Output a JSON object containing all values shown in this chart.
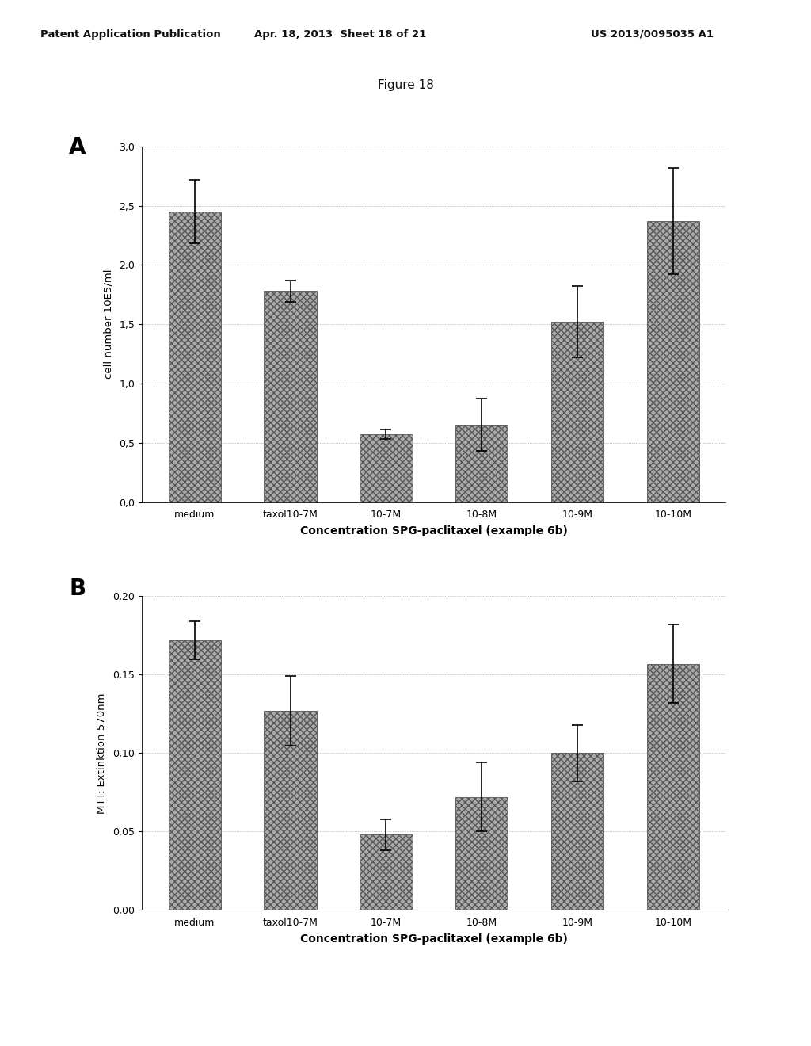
{
  "figure_title": "Figure 18",
  "header_left": "Patent Application Publication",
  "header_mid": "Apr. 18, 2013  Sheet 18 of 21",
  "header_right": "US 2013/0095035 A1",
  "chart_A": {
    "label": "A",
    "ylabel": "cell number 10E5/ml",
    "xlabel": "Concentration SPG-paclitaxel (example 6b)",
    "categories": [
      "medium",
      "taxol10-7M",
      "10-7M",
      "10-8M",
      "10-9M",
      "10-10M"
    ],
    "values": [
      2.45,
      1.78,
      0.57,
      0.65,
      1.52,
      2.37
    ],
    "errors": [
      0.27,
      0.09,
      0.04,
      0.22,
      0.3,
      0.45
    ],
    "ylim": [
      0.0,
      3.0
    ],
    "yticks": [
      0.0,
      0.5,
      1.0,
      1.5,
      2.0,
      2.5,
      3.0
    ],
    "ytick_labels": [
      "0,0",
      "0,5",
      "1,0",
      "1,5",
      "2,0",
      "2,5",
      "3,0"
    ]
  },
  "chart_B": {
    "label": "B",
    "ylabel": "MTT: Extinktion 570nm",
    "xlabel": "Concentration SPG-paclitaxel (example 6b)",
    "categories": [
      "medium",
      "taxol10-7M",
      "10-7M",
      "10-8M",
      "10-9M",
      "10-10M"
    ],
    "values": [
      0.172,
      0.127,
      0.048,
      0.072,
      0.1,
      0.157
    ],
    "errors": [
      0.012,
      0.022,
      0.01,
      0.022,
      0.018,
      0.025
    ],
    "ylim": [
      0.0,
      0.2
    ],
    "yticks": [
      0.0,
      0.05,
      0.1,
      0.15,
      0.2
    ],
    "ytick_labels": [
      "0,00",
      "0,05",
      "0,10",
      "0,15",
      "0,20"
    ]
  },
  "bar_color": "#aaaaaa",
  "bar_hatch": "xxxx",
  "bar_edgecolor": "#555555",
  "bar_width": 0.55,
  "background_color": "#ffffff",
  "font_color": "#000000"
}
